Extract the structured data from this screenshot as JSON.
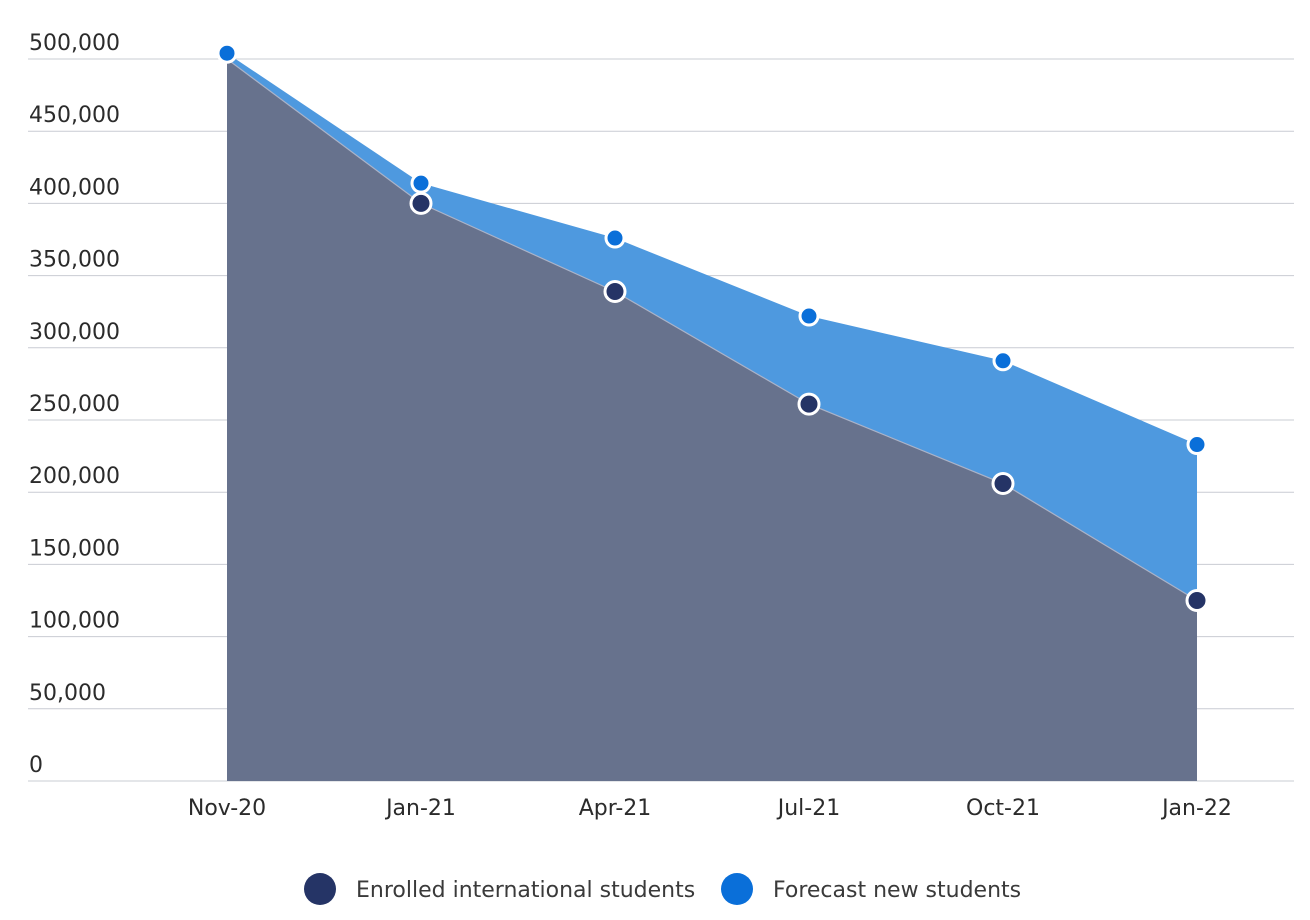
{
  "chart_data": {
    "type": "area",
    "categories": [
      "Nov-20",
      "Jan-21",
      "Apr-21",
      "Jul-21",
      "Oct-21",
      "Jan-22"
    ],
    "series": [
      {
        "name": "Enrolled international students",
        "color": "#253466",
        "fill": "#67728d",
        "values": [
          500000,
          400000,
          339000,
          261000,
          206000,
          125000
        ]
      },
      {
        "name": "Forecast new students",
        "color": "#0a6fd9",
        "fill": "#4e99df",
        "values": [
          504000,
          414000,
          376000,
          322000,
          291000,
          233000
        ]
      }
    ],
    "ylim": [
      0,
      500000
    ],
    "yticks": [
      0,
      50000,
      100000,
      150000,
      200000,
      250000,
      300000,
      350000,
      400000,
      450000,
      500000
    ],
    "ytick_labels": [
      "0",
      "50,000",
      "100,000",
      "150,000",
      "200,000",
      "250,000",
      "300,000",
      "350,000",
      "400,000",
      "450,000",
      "500,000"
    ],
    "grid": true,
    "legend_position": "bottom-center",
    "title": "",
    "xlabel": "",
    "ylabel": ""
  }
}
